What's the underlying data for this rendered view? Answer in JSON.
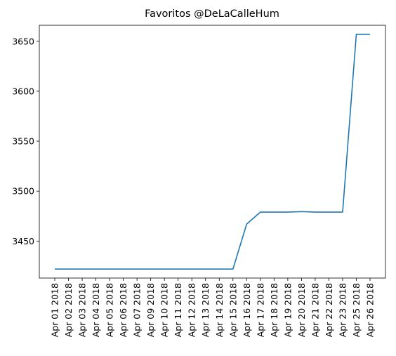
{
  "chart_data": {
    "type": "line",
    "title": "Favoritos @DeLaCalleHum",
    "xlabel": "",
    "ylabel": "",
    "grid": false,
    "legend": "none",
    "categories": [
      "Apr 01 2018",
      "Apr 02 2018",
      "Apr 03 2018",
      "Apr 04 2018",
      "Apr 05 2018",
      "Apr 06 2018",
      "Apr 07 2018",
      "Apr 09 2018",
      "Apr 10 2018",
      "Apr 11 2018",
      "Apr 12 2018",
      "Apr 13 2018",
      "Apr 14 2018",
      "Apr 15 2018",
      "Apr 16 2018",
      "Apr 17 2018",
      "Apr 18 2018",
      "Apr 19 2018",
      "Apr 20 2018",
      "Apr 21 2018",
      "Apr 22 2018",
      "Apr 23 2018",
      "Apr 25 2018",
      "Apr 26 2018"
    ],
    "series": [
      {
        "color": "#1f77b4",
        "values": [
          3422,
          3422,
          3422,
          3422,
          3422,
          3422,
          3422,
          3422,
          3422,
          3422,
          3422,
          3422,
          3422,
          3422,
          3467,
          3479,
          3479,
          3479,
          3479.5,
          3479,
          3479,
          3479,
          3657,
          3657
        ]
      }
    ],
    "ylim": [
      3413,
      3666
    ],
    "yticks": [
      3450,
      3500,
      3550,
      3600,
      3650
    ]
  }
}
